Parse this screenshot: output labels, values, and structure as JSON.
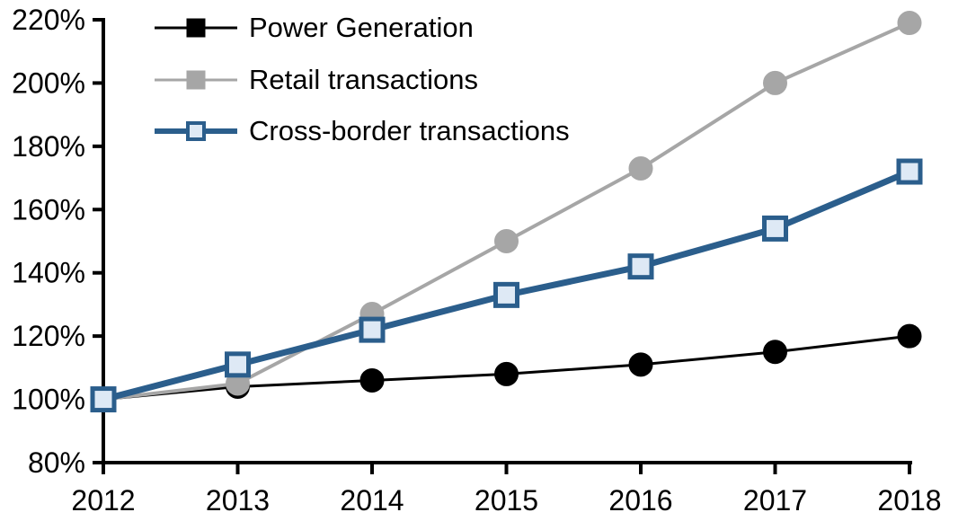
{
  "chart_data": {
    "type": "line",
    "title": "",
    "xlabel": "",
    "ylabel": "",
    "x": [
      2012,
      2013,
      2014,
      2015,
      2016,
      2017,
      2018
    ],
    "x_tick_labels": [
      "2012",
      "2013",
      "2014",
      "2015",
      "2016",
      "2017",
      "2018"
    ],
    "y_tick_labels": [
      "80%",
      "100%",
      "120%",
      "140%",
      "160%",
      "180%",
      "200%",
      "220%"
    ],
    "ylim": [
      80,
      220
    ],
    "y_tick_step": 20,
    "grid": false,
    "legend_position": "top-left",
    "axis_color": "#000000",
    "series": [
      {
        "name": "Power Generation",
        "color": "#000000",
        "line_width": 3,
        "marker": "circle",
        "marker_fill": "#000000",
        "marker_stroke": "#000000",
        "values": [
          100,
          104,
          106,
          108,
          111,
          115,
          120
        ]
      },
      {
        "name": "Retail transactions",
        "color": "#A6A6A6",
        "line_width": 4,
        "marker": "circle",
        "marker_fill": "#A6A6A6",
        "marker_stroke": "#A6A6A6",
        "values": [
          100,
          105,
          127,
          150,
          173,
          200,
          219
        ]
      },
      {
        "name": "Cross-border transactions",
        "color": "#2B5E8C",
        "line_width": 7,
        "marker": "square",
        "marker_fill": "#DEE9F5",
        "marker_stroke": "#2B5E8C",
        "values": [
          100,
          111,
          122,
          133,
          142,
          154,
          172
        ]
      }
    ]
  }
}
